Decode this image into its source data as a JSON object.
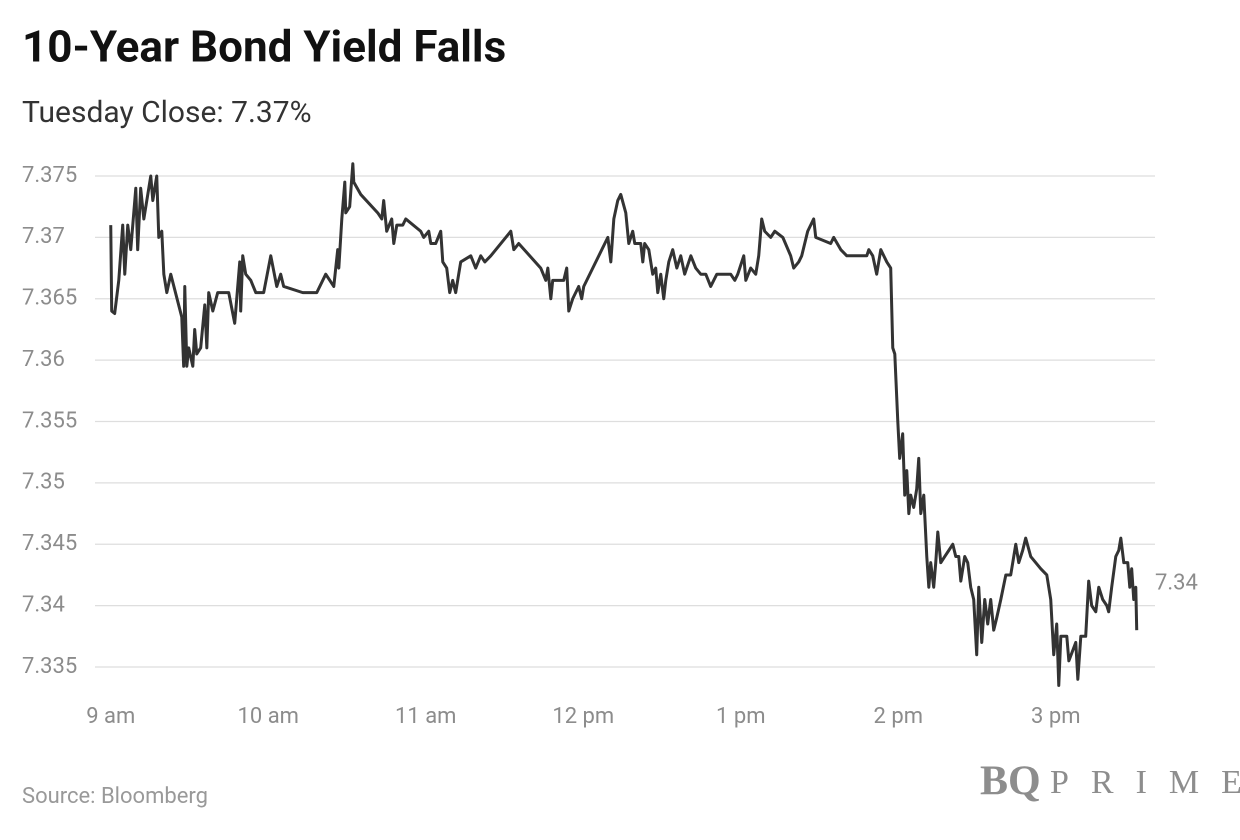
{
  "chart_data": {
    "type": "line",
    "title": "10-Year Bond Yield Falls",
    "subtitle": "Tuesday Close: 7.37%",
    "source": "Source: Bloomberg",
    "logo": {
      "mark": "BQ",
      "name": "PRIME"
    },
    "end_label": 7.34,
    "color": "#333333",
    "grid": true,
    "xlim": [
      8.9,
      15.63
    ],
    "ylim": [
      7.333,
      7.3765
    ],
    "xticks": [
      {
        "value": 9,
        "label": "9 am"
      },
      {
        "value": 10,
        "label": "10 am"
      },
      {
        "value": 11,
        "label": "11 am"
      },
      {
        "value": 12,
        "label": "12 pm"
      },
      {
        "value": 13,
        "label": "1 pm"
      },
      {
        "value": 14,
        "label": "2 pm"
      },
      {
        "value": 15,
        "label": "3 pm"
      }
    ],
    "yticks": [
      7.335,
      7.34,
      7.345,
      7.35,
      7.355,
      7.36,
      7.365,
      7.37,
      7.375
    ],
    "x": [
      9.0,
      9.006,
      9.025,
      9.051,
      9.076,
      9.089,
      9.108,
      9.127,
      9.159,
      9.171,
      9.19,
      9.21,
      9.254,
      9.267,
      9.292,
      9.305,
      9.324,
      9.337,
      9.356,
      9.381,
      9.451,
      9.463,
      9.47,
      9.483,
      9.495,
      9.521,
      9.533,
      9.546,
      9.571,
      9.597,
      9.61,
      9.622,
      9.648,
      9.679,
      9.749,
      9.787,
      9.819,
      9.825,
      9.838,
      9.857,
      9.889,
      9.921,
      9.971,
      10.016,
      10.054,
      10.079,
      10.098,
      10.219,
      10.27,
      10.308,
      10.365,
      10.416,
      10.441,
      10.448,
      10.467,
      10.486,
      10.492,
      10.517,
      10.537,
      10.543,
      10.587,
      10.695,
      10.721,
      10.733,
      10.752,
      10.784,
      10.797,
      10.816,
      10.854,
      10.873,
      10.968,
      10.987,
      11.019,
      11.032,
      11.063,
      11.095,
      11.108,
      11.133,
      11.152,
      11.171,
      11.19,
      11.209,
      11.222,
      11.286,
      11.317,
      11.349,
      11.375,
      11.413,
      11.54,
      11.559,
      11.59,
      11.73,
      11.762,
      11.775,
      11.794,
      11.806,
      11.876,
      11.895,
      11.908,
      11.933,
      11.971,
      11.99,
      12.003,
      12.156,
      12.175,
      12.194,
      12.219,
      12.238,
      12.27,
      12.289,
      12.314,
      12.327,
      12.365,
      12.378,
      12.39,
      12.416,
      12.441,
      12.46,
      12.473,
      12.492,
      12.511,
      12.524,
      12.543,
      12.568,
      12.594,
      12.619,
      12.644,
      12.683,
      12.714,
      12.746,
      12.778,
      12.809,
      12.848,
      12.936,
      12.962,
      12.981,
      13.019,
      13.032,
      13.063,
      13.095,
      13.114,
      13.133,
      13.152,
      13.19,
      13.216,
      13.267,
      13.317,
      13.336,
      13.368,
      13.387,
      13.425,
      13.463,
      13.476,
      13.571,
      13.59,
      13.635,
      13.673,
      13.749,
      13.8,
      13.813,
      13.838,
      13.863,
      13.889,
      13.927,
      13.952,
      13.965,
      13.978,
      13.997,
      14.009,
      14.028,
      14.041,
      14.054,
      14.067,
      14.079,
      14.098,
      14.117,
      14.13,
      14.143,
      14.162,
      14.181,
      14.194,
      14.206,
      14.225,
      14.238,
      14.251,
      14.27,
      14.295,
      14.321,
      14.346,
      14.365,
      14.384,
      14.397,
      14.422,
      14.441,
      14.46,
      14.479,
      14.498,
      14.511,
      14.53,
      14.549,
      14.568,
      14.587,
      14.606,
      14.625,
      14.651,
      14.683,
      14.714,
      14.746,
      14.765,
      14.79,
      14.809,
      14.841,
      14.905,
      14.943,
      14.968,
      14.987,
      15.006,
      15.019,
      15.032,
      15.07,
      15.083,
      15.127,
      15.14,
      15.159,
      15.19,
      15.209,
      15.228,
      15.254,
      15.273,
      15.298,
      15.324,
      15.336,
      15.355,
      15.381,
      15.4,
      15.413,
      15.432,
      15.457,
      15.47,
      15.482,
      15.495,
      15.508,
      15.514
    ],
    "values": [
      7.371,
      7.364,
      7.3638,
      7.3665,
      7.371,
      7.367,
      7.371,
      7.369,
      7.374,
      7.369,
      7.374,
      7.3715,
      7.375,
      7.373,
      7.375,
      7.37,
      7.3705,
      7.367,
      7.3655,
      7.367,
      7.3635,
      7.3595,
      7.366,
      7.3595,
      7.361,
      7.3595,
      7.3625,
      7.3605,
      7.361,
      7.3645,
      7.361,
      7.3655,
      7.364,
      7.3655,
      7.3655,
      7.363,
      7.368,
      7.364,
      7.3685,
      7.367,
      7.3665,
      7.3655,
      7.3655,
      7.3685,
      7.366,
      7.367,
      7.366,
      7.3655,
      7.3655,
      7.3655,
      7.367,
      7.366,
      7.369,
      7.3675,
      7.3715,
      7.3745,
      7.372,
      7.3725,
      7.376,
      7.3745,
      7.3735,
      7.372,
      7.3715,
      7.373,
      7.3705,
      7.3715,
      7.3695,
      7.371,
      7.371,
      7.3715,
      7.3705,
      7.37,
      7.3705,
      7.3695,
      7.3695,
      7.3705,
      7.368,
      7.3675,
      7.3655,
      7.3665,
      7.3655,
      7.367,
      7.368,
      7.3685,
      7.3675,
      7.3685,
      7.368,
      7.3685,
      7.3705,
      7.369,
      7.3695,
      7.3675,
      7.3665,
      7.3675,
      7.365,
      7.3665,
      7.3665,
      7.3675,
      7.364,
      7.365,
      7.366,
      7.365,
      7.366,
      7.37,
      7.368,
      7.3715,
      7.373,
      7.3735,
      7.372,
      7.3695,
      7.3705,
      7.3695,
      7.3695,
      7.368,
      7.3695,
      7.369,
      7.367,
      7.3675,
      7.3655,
      7.367,
      7.365,
      7.3665,
      7.368,
      7.369,
      7.3675,
      7.3685,
      7.367,
      7.3685,
      7.3675,
      7.367,
      7.367,
      7.366,
      7.367,
      7.367,
      7.3665,
      7.367,
      7.3685,
      7.3665,
      7.3675,
      7.367,
      7.3685,
      7.3715,
      7.3705,
      7.37,
      7.3705,
      7.37,
      7.3685,
      7.3675,
      7.368,
      7.3685,
      7.3705,
      7.3715,
      7.37,
      7.3695,
      7.37,
      7.369,
      7.3685,
      7.3685,
      7.3685,
      7.369,
      7.3685,
      7.367,
      7.369,
      7.368,
      7.3675,
      7.361,
      7.3605,
      7.355,
      7.352,
      7.354,
      7.349,
      7.351,
      7.3475,
      7.349,
      7.348,
      7.3495,
      7.352,
      7.3475,
      7.349,
      7.344,
      7.3415,
      7.3435,
      7.3415,
      7.3435,
      7.346,
      7.3435,
      7.344,
      7.3445,
      7.345,
      7.344,
      7.344,
      7.342,
      7.344,
      7.3435,
      7.3415,
      7.3405,
      7.336,
      7.3415,
      7.337,
      7.3405,
      7.3385,
      7.3405,
      7.338,
      7.339,
      7.3405,
      7.3425,
      7.3425,
      7.345,
      7.3435,
      7.3445,
      7.3455,
      7.344,
      7.343,
      7.3425,
      7.3405,
      7.336,
      7.3385,
      7.3335,
      7.3375,
      7.3375,
      7.3355,
      7.337,
      7.334,
      7.3375,
      7.3375,
      7.342,
      7.34,
      7.3395,
      7.3415,
      7.3405,
      7.34,
      7.3395,
      7.3415,
      7.344,
      7.3445,
      7.3455,
      7.3435,
      7.3435,
      7.3415,
      7.343,
      7.3405,
      7.3415,
      7.338
    ]
  }
}
